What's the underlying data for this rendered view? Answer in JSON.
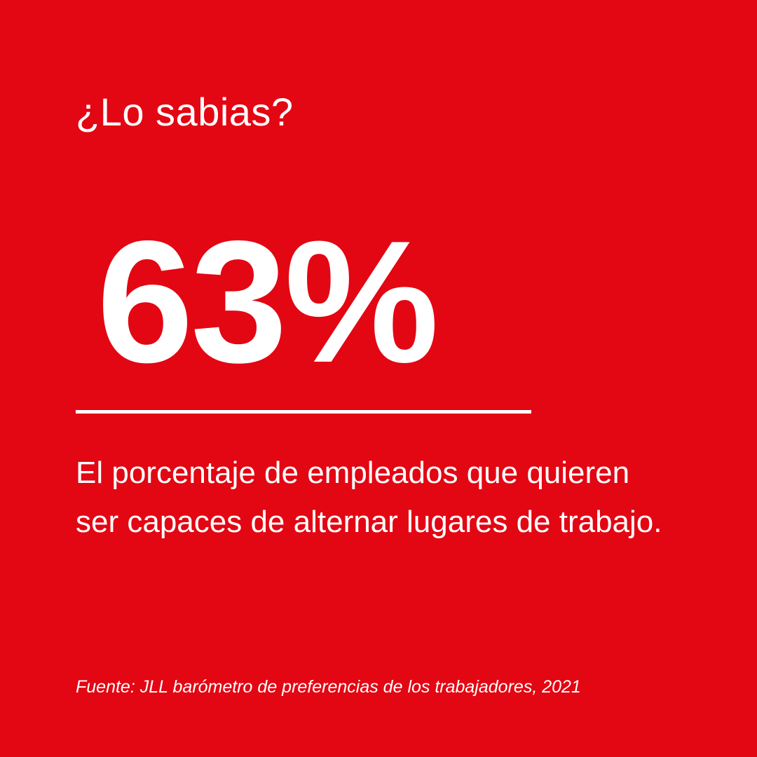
{
  "card": {
    "heading": "¿Lo sabias?",
    "stat": "63%",
    "description": "El porcentaje de empleados que quieren ser capaces de alternar lugares de trabajo.",
    "source": "Fuente: JLL barómetro de preferencias de los trabajadores, 2021"
  },
  "colors": {
    "background": "#E30613",
    "text": "#FFFFFF"
  }
}
